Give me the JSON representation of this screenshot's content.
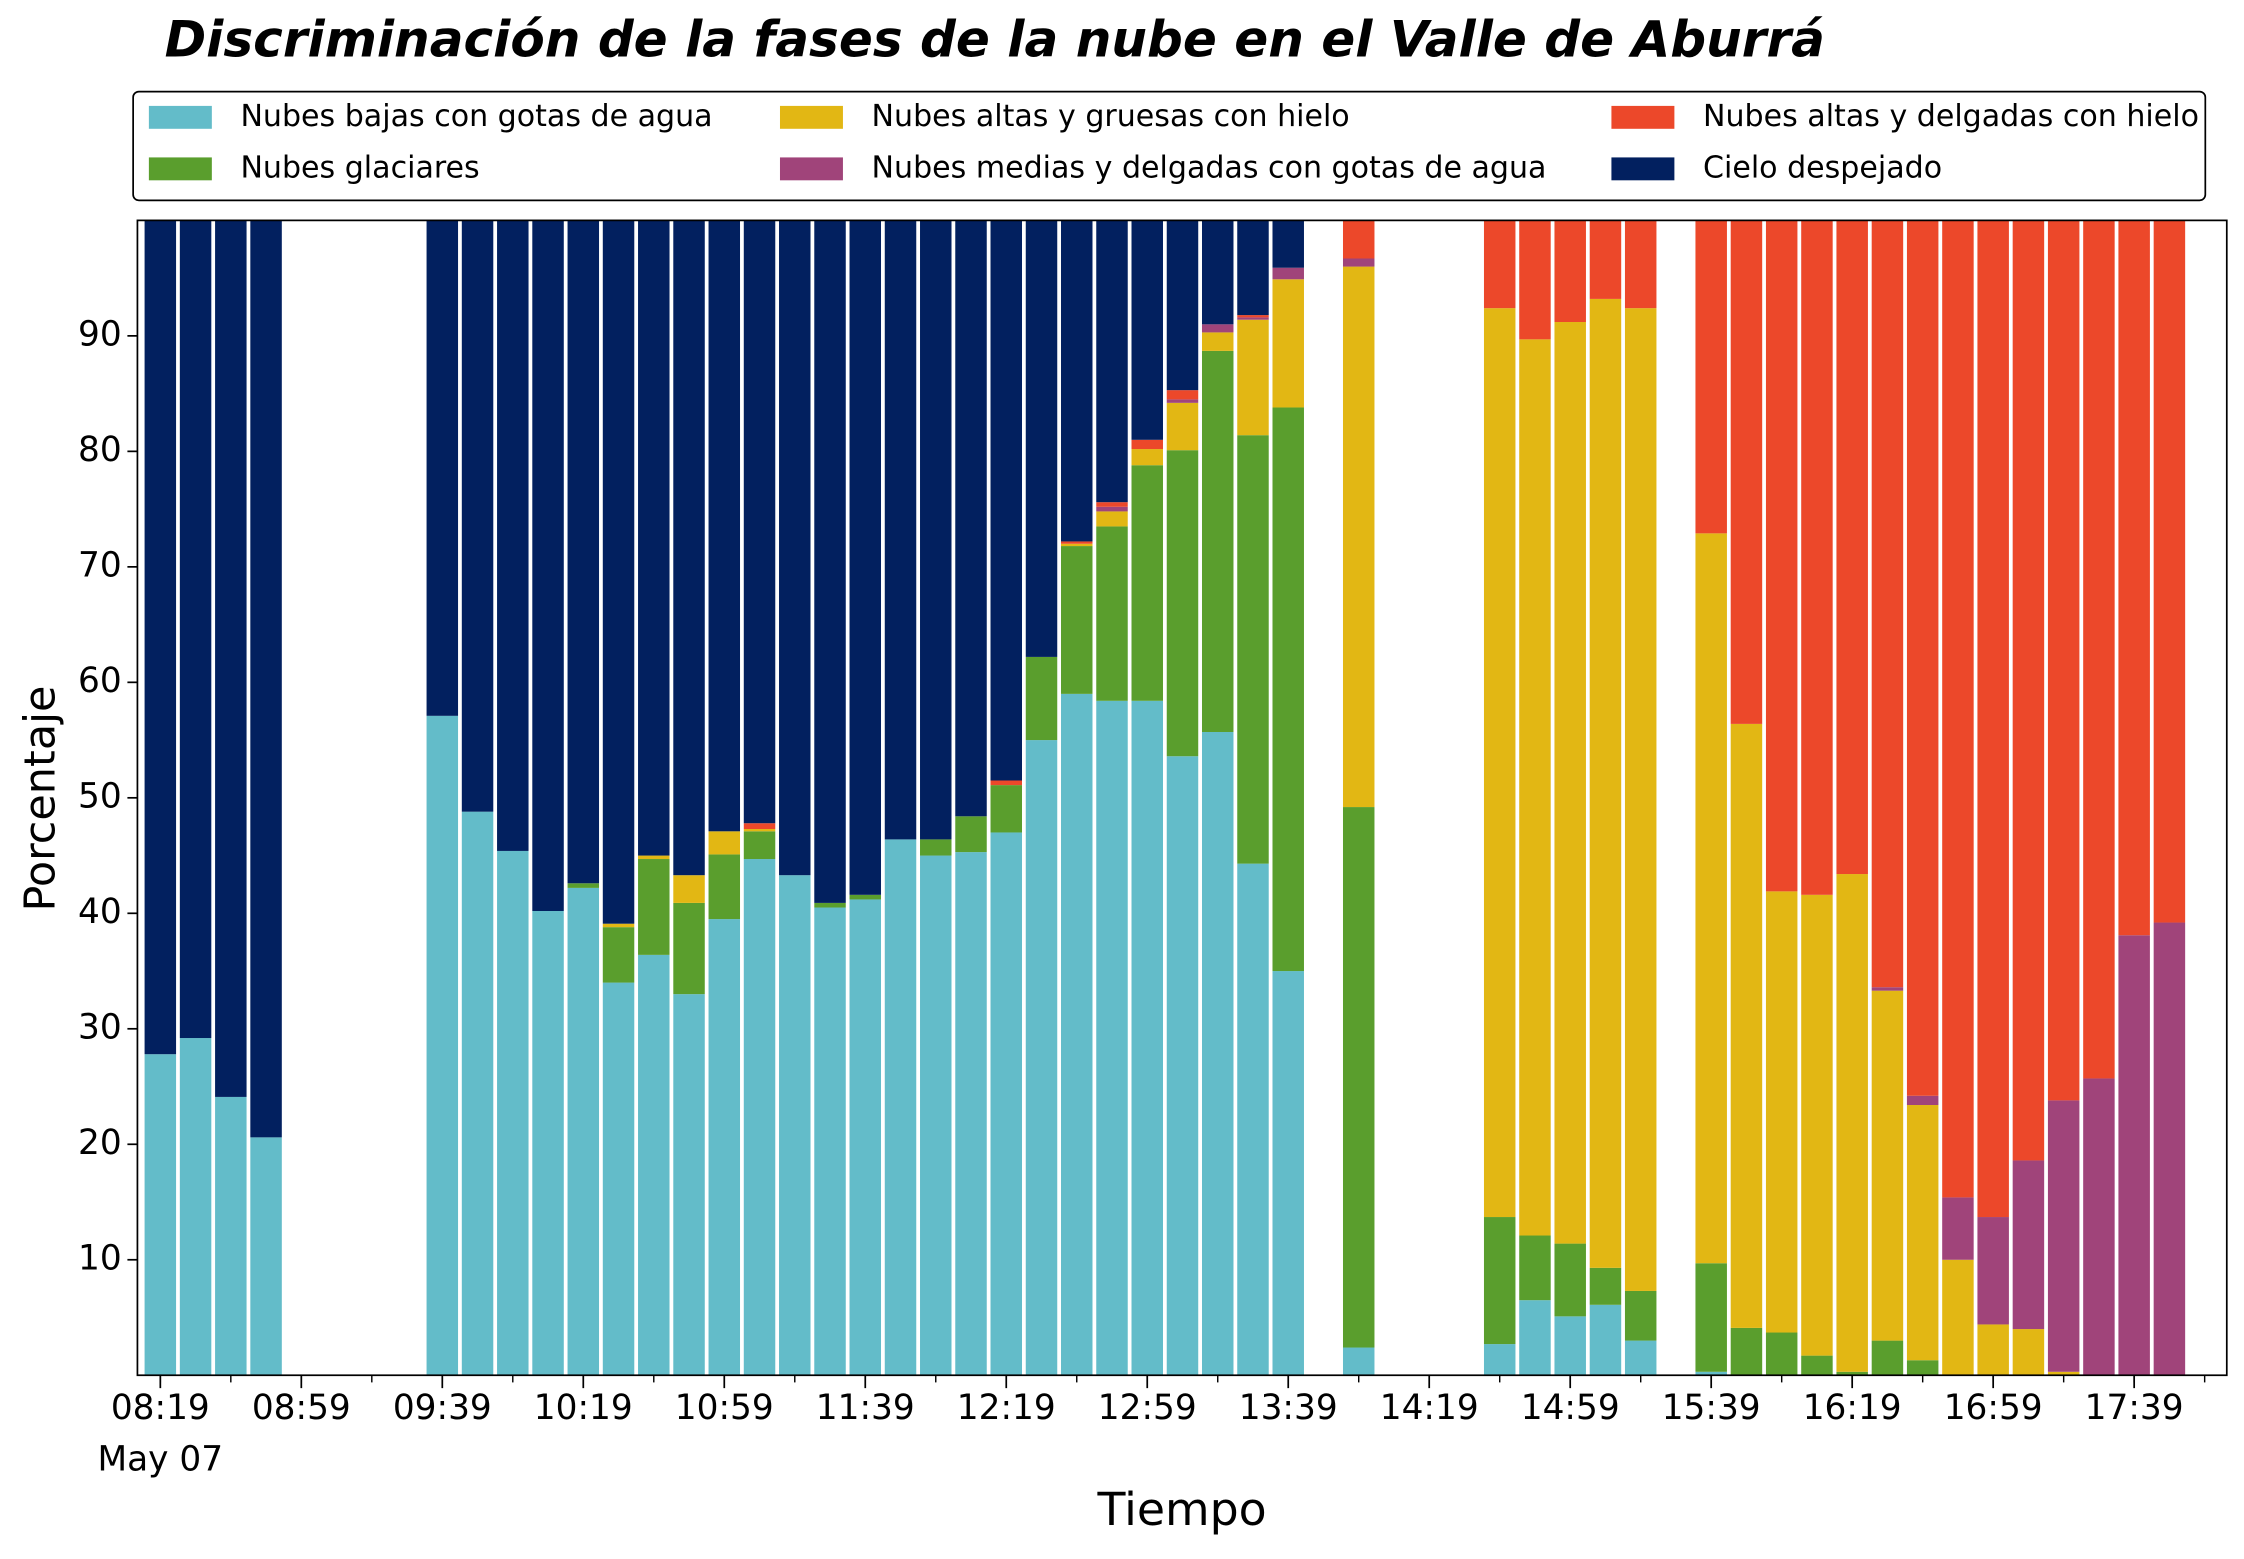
{
  "chart_data": {
    "type": "bar",
    "stacked": true,
    "title": "Discriminación de la fases de la nube en el Valle de Aburrá",
    "xlabel": "Tiempo",
    "ylabel": "Porcentaje",
    "date_label": "May 07",
    "x": [
      "08:19",
      "08:29",
      "08:39",
      "08:49",
      "08:59",
      "09:09",
      "09:19",
      "09:29",
      "09:39",
      "09:49",
      "09:59",
      "10:09",
      "10:19",
      "10:29",
      "10:39",
      "10:49",
      "10:59",
      "11:09",
      "11:19",
      "11:29",
      "11:39",
      "11:49",
      "11:59",
      "12:09",
      "12:19",
      "12:29",
      "12:39",
      "12:49",
      "12:59",
      "13:09",
      "13:19",
      "13:29",
      "13:39",
      "13:49",
      "13:59",
      "14:09",
      "14:19",
      "14:29",
      "14:39",
      "14:49",
      "14:59",
      "15:09",
      "15:19",
      "15:29",
      "15:39",
      "15:49",
      "15:59",
      "16:09",
      "16:19",
      "16:29",
      "16:39",
      "16:49",
      "16:59",
      "17:09",
      "17:19",
      "17:29",
      "17:39",
      "17:49"
    ],
    "xticks": [
      "08:19",
      "08:59",
      "09:39",
      "10:19",
      "10:59",
      "11:39",
      "12:19",
      "12:59",
      "13:39",
      "14:19",
      "14:59",
      "15:39",
      "16:19",
      "16:59",
      "17:39"
    ],
    "ylim": [
      0,
      100
    ],
    "yticks": [
      10,
      20,
      30,
      40,
      50,
      60,
      70,
      80,
      90
    ],
    "legend": "top",
    "series": [
      {
        "name": "Nubes bajas con gotas de agua",
        "color": "#63bcc9",
        "values": [
          27.8,
          29.2,
          24.1,
          20.6,
          null,
          null,
          null,
          null,
          57.1,
          48.8,
          45.4,
          40.2,
          42.2,
          34.0,
          36.4,
          33.0,
          39.5,
          44.7,
          43.3,
          40.5,
          41.2,
          46.4,
          45.0,
          45.3,
          47.0,
          55.0,
          59.0,
          58.4,
          58.4,
          53.6,
          55.7,
          44.3,
          35.0,
          null,
          2.4,
          null,
          null,
          null,
          2.7,
          6.5,
          5.1,
          6.1,
          3.0,
          null,
          0.3,
          0,
          0,
          0,
          0,
          0,
          0,
          0,
          0,
          0,
          0,
          0,
          0,
          0
        ]
      },
      {
        "name": "Nubes glaciares",
        "color": "#5a9e2d",
        "values": [
          0,
          0,
          0,
          0,
          null,
          null,
          null,
          null,
          0,
          0,
          0,
          0,
          0.4,
          4.8,
          8.3,
          7.9,
          5.6,
          2.4,
          0,
          0.4,
          0.4,
          0,
          1.4,
          3.1,
          4.1,
          7.2,
          12.8,
          15.1,
          20.4,
          26.5,
          33.0,
          37.1,
          48.8,
          null,
          46.8,
          null,
          null,
          null,
          11.0,
          5.6,
          6.3,
          3.2,
          4.3,
          null,
          9.4,
          4.1,
          3.7,
          1.7,
          0.3,
          3.0,
          1.3,
          0,
          0,
          0,
          0,
          0,
          0,
          0
        ]
      },
      {
        "name": "Nubes altas y gruesas con hielo",
        "color": "#e2b714",
        "values": [
          0,
          0,
          0,
          0,
          null,
          null,
          null,
          null,
          0,
          0,
          0,
          0,
          0,
          0.3,
          0.3,
          2.4,
          2.0,
          0.2,
          0,
          0,
          0,
          0,
          0,
          0,
          0,
          0,
          0.2,
          1.3,
          1.4,
          4.1,
          1.6,
          10.0,
          11.1,
          null,
          46.8,
          null,
          null,
          null,
          78.7,
          77.6,
          79.8,
          83.9,
          85.1,
          null,
          63.2,
          52.3,
          38.2,
          39.9,
          43.1,
          30.3,
          22.1,
          10.0,
          4.4,
          4.0,
          0.3,
          0,
          0,
          0
        ]
      },
      {
        "name": "Nubes medias y delgadas con gotas de agua",
        "color": "#a0447a",
        "values": [
          0,
          0,
          0,
          0,
          null,
          null,
          null,
          null,
          0,
          0,
          0,
          0,
          0,
          0,
          0,
          0,
          0,
          0,
          0,
          0,
          0,
          0,
          0,
          0,
          0,
          0,
          0,
          0.4,
          0,
          0.3,
          0.7,
          0.2,
          1.0,
          null,
          0.7,
          null,
          null,
          null,
          0,
          0,
          0,
          0,
          0,
          null,
          0,
          0,
          0,
          0,
          0,
          0.3,
          0.8,
          5.4,
          9.3,
          14.6,
          23.5,
          25.7,
          38.1,
          39.2
        ]
      },
      {
        "name": "Nubes altas y delgadas con hielo",
        "color": "#ec482a",
        "values": [
          0,
          0,
          0,
          0,
          null,
          null,
          null,
          null,
          0,
          0,
          0,
          0,
          0,
          0,
          0,
          0,
          0,
          0.5,
          0,
          0,
          0,
          0,
          0,
          0,
          0.4,
          0,
          0.2,
          0.4,
          0.8,
          0.8,
          0,
          0.2,
          0,
          null,
          3.3,
          null,
          null,
          null,
          7.6,
          10.3,
          8.8,
          6.8,
          7.6,
          null,
          27.1,
          43.6,
          58.1,
          58.4,
          56.6,
          66.4,
          75.8,
          84.6,
          86.3,
          81.4,
          76.2,
          74.3,
          61.9,
          60.8
        ]
      },
      {
        "name": "Cielo despejado",
        "color": "#02205f",
        "values": [
          72.2,
          70.8,
          75.9,
          79.4,
          null,
          null,
          null,
          null,
          42.9,
          51.2,
          54.6,
          59.8,
          57.4,
          60.9,
          55.0,
          56.7,
          52.9,
          52.2,
          56.7,
          59.1,
          58.4,
          53.6,
          53.6,
          51.6,
          48.5,
          37.8,
          27.8,
          24.4,
          19.0,
          14.7,
          9.0,
          8.2,
          4.1,
          null,
          0,
          null,
          null,
          null,
          0,
          0,
          0,
          0,
          0,
          null,
          0,
          0,
          0,
          0,
          0,
          0,
          0,
          0,
          0,
          0,
          0,
          0,
          0,
          0
        ]
      }
    ]
  }
}
